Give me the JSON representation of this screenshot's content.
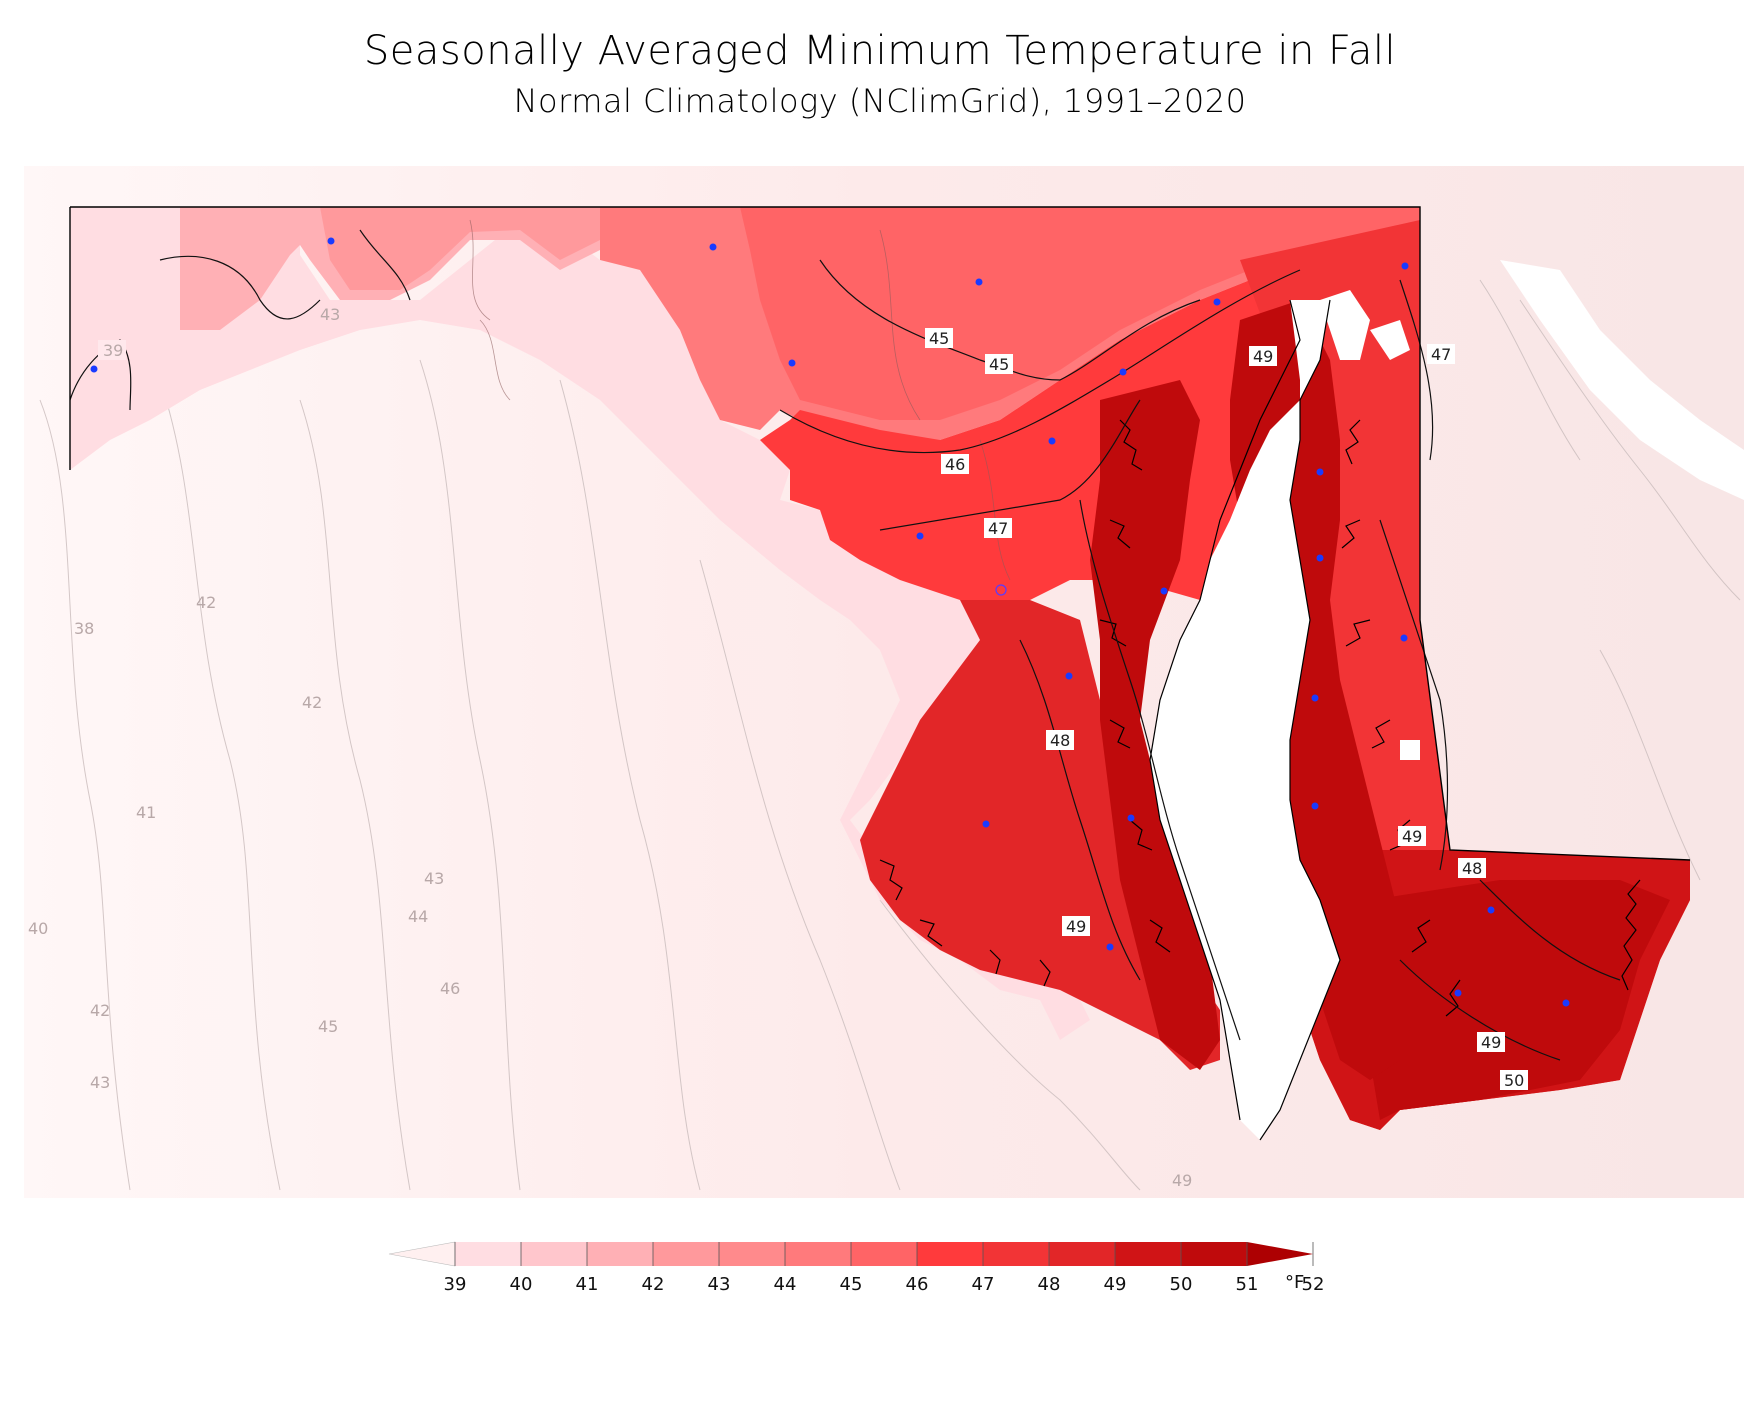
{
  "title": "Seasonally Averaged Minimum Temperature in Fall",
  "subtitle": "Normal Climatology (NClimGrid), 1991–2020",
  "legend": {
    "unit": "°F",
    "ticks": [
      "39",
      "40",
      "41",
      "42",
      "43",
      "44",
      "45",
      "46",
      "47",
      "48",
      "49",
      "50",
      "51",
      "52"
    ],
    "colors": [
      "#ffdde2",
      "#ffc6cc",
      "#ffb0b5",
      "#ff999c",
      "#ff8a8c",
      "#ff7a7c",
      "#ff6466",
      "#ff3a3c",
      "#f23436",
      "#e22628",
      "#d01416",
      "#bf0a0c",
      "#ad0002"
    ],
    "under_color": "#fff0f0",
    "over_color": "#ad0002"
  },
  "contour_labels": {
    "inside": [
      "39",
      "43",
      "45",
      "45",
      "46",
      "47",
      "48",
      "49",
      "49",
      "49",
      "48",
      "47",
      "49",
      "50"
    ],
    "outside": [
      "42",
      "38",
      "42",
      "41",
      "43",
      "44",
      "40",
      "42",
      "46",
      "45",
      "43",
      "49"
    ]
  },
  "stations_count": 22
}
